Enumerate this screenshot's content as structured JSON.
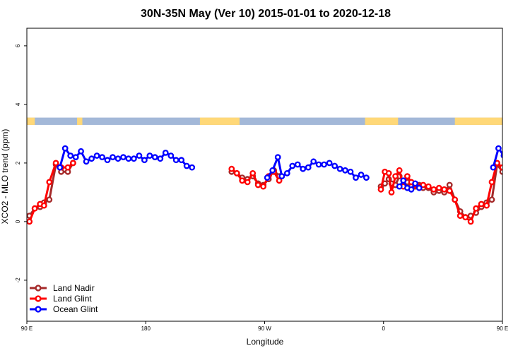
{
  "chart_data": {
    "type": "line",
    "title": "30N-35N May (Ver 10)   2015-01-01 to 2020-12-18",
    "xlabel": "Longitude",
    "ylabel": "XCO2 - MLO trend (ppm)",
    "xlim": [
      90,
      450
    ],
    "ylim": [
      -3.4,
      6.6
    ],
    "x_ticks": [
      {
        "value": 90,
        "label": "90 E"
      },
      {
        "value": 180,
        "label": "180"
      },
      {
        "value": 270,
        "label": "90 W"
      },
      {
        "value": 360,
        "label": "0"
      },
      {
        "value": 450,
        "label": "90 E"
      },
      {
        "value": 540,
        "label": "180"
      }
    ],
    "y_ticks": [
      {
        "value": -2,
        "label": "-2"
      },
      {
        "value": 0,
        "label": "0"
      },
      {
        "value": 2,
        "label": "2"
      },
      {
        "value": 4,
        "label": "4"
      },
      {
        "value": 6,
        "label": "6"
      }
    ],
    "land_ocean_band": {
      "y_range": [
        3.3,
        3.55
      ],
      "ocean_color": "#a3b8d8",
      "land_color": "#ffd878",
      "land_segments": [
        [
          90,
          96
        ],
        [
          128,
          132
        ],
        [
          221,
          251
        ],
        [
          346,
          371
        ],
        [
          414,
          494
        ]
      ]
    },
    "legend": {
      "position": "bottom-left",
      "entries": [
        {
          "label": "Land Nadir",
          "color": "#a52a2a"
        },
        {
          "label": "Land Glint",
          "color": "#ff0000"
        },
        {
          "label": "Ocean Glint",
          "color": "#0000ff"
        }
      ]
    },
    "series": [
      {
        "name": "Land Nadir",
        "color": "#a52a2a",
        "segments": [
          [
            [
              92,
              0.2
            ],
            [
              96,
              0.45
            ],
            [
              100,
              0.5
            ],
            [
              103,
              0.65
            ],
            [
              107,
              0.75
            ],
            [
              112,
              1.95
            ],
            [
              116,
              1.7
            ],
            [
              121,
              1.7
            ],
            [
              125,
              2.0
            ]
          ],
          [
            [
              245,
              1.7
            ],
            [
              249,
              1.65
            ],
            [
              253,
              1.5
            ],
            [
              257,
              1.45
            ],
            [
              261,
              1.55
            ],
            [
              265,
              1.3
            ],
            [
              269,
              1.25
            ],
            [
              273,
              1.45
            ],
            [
              277,
              1.75
            ],
            [
              281,
              1.55
            ]
          ],
          [
            [
              358,
              1.2
            ],
            [
              361,
              1.3
            ],
            [
              364,
              1.45
            ],
            [
              366,
              1.3
            ],
            [
              369,
              1.25
            ],
            [
              372,
              1.55
            ],
            [
              375,
              1.4
            ],
            [
              378,
              1.35
            ],
            [
              381,
              1.2
            ],
            [
              384,
              1.2
            ],
            [
              387,
              1.25
            ],
            [
              390,
              1.15
            ],
            [
              394,
              1.15
            ],
            [
              398,
              1.0
            ],
            [
              402,
              1.05
            ],
            [
              406,
              1.0
            ],
            [
              410,
              1.25
            ],
            [
              414,
              0.75
            ],
            [
              418,
              0.35
            ],
            [
              422,
              0.15
            ],
            [
              426,
              0.2
            ],
            [
              430,
              0.3
            ],
            [
              434,
              0.5
            ],
            [
              438,
              0.65
            ],
            [
              442,
              0.75
            ],
            [
              446,
              1.95
            ],
            [
              450,
              1.7
            ]
          ]
        ]
      },
      {
        "name": "Land Glint",
        "color": "#ff0000",
        "segments": [
          [
            [
              92,
              0.0
            ],
            [
              96,
              0.45
            ],
            [
              100,
              0.6
            ],
            [
              103,
              0.55
            ],
            [
              107,
              1.35
            ],
            [
              112,
              2.0
            ],
            [
              116,
              1.85
            ],
            [
              121,
              1.85
            ],
            [
              125,
              2.0
            ]
          ],
          [
            [
              245,
              1.8
            ],
            [
              249,
              1.65
            ],
            [
              253,
              1.4
            ],
            [
              257,
              1.35
            ],
            [
              261,
              1.65
            ],
            [
              265,
              1.25
            ],
            [
              269,
              1.2
            ],
            [
              273,
              1.55
            ],
            [
              277,
              1.7
            ],
            [
              281,
              1.4
            ]
          ],
          [
            [
              358,
              1.1
            ],
            [
              361,
              1.7
            ],
            [
              364,
              1.65
            ],
            [
              366,
              1.0
            ],
            [
              369,
              1.55
            ],
            [
              372,
              1.75
            ],
            [
              375,
              1.2
            ],
            [
              378,
              1.55
            ],
            [
              381,
              1.35
            ],
            [
              384,
              1.25
            ],
            [
              387,
              1.2
            ],
            [
              390,
              1.25
            ],
            [
              394,
              1.2
            ],
            [
              398,
              1.1
            ],
            [
              402,
              1.15
            ],
            [
              406,
              1.1
            ],
            [
              410,
              1.05
            ],
            [
              414,
              0.75
            ],
            [
              418,
              0.2
            ],
            [
              422,
              0.15
            ],
            [
              426,
              0.0
            ],
            [
              430,
              0.45
            ],
            [
              434,
              0.6
            ],
            [
              438,
              0.55
            ],
            [
              442,
              1.35
            ],
            [
              446,
              2.0
            ],
            [
              450,
              1.85
            ],
            [
              454,
              1.85
            ],
            [
              458,
              2.0
            ]
          ]
        ]
      },
      {
        "name": "Ocean Glint",
        "color": "#0000ff",
        "segments": [
          [
            [
              115,
              1.85
            ],
            [
              119,
              2.5
            ],
            [
              123,
              2.25
            ],
            [
              127,
              2.2
            ],
            [
              131,
              2.4
            ],
            [
              135,
              2.05
            ],
            [
              139,
              2.15
            ],
            [
              143,
              2.25
            ],
            [
              147,
              2.2
            ],
            [
              151,
              2.1
            ],
            [
              155,
              2.2
            ],
            [
              159,
              2.15
            ],
            [
              163,
              2.2
            ],
            [
              167,
              2.15
            ],
            [
              171,
              2.15
            ],
            [
              175,
              2.25
            ],
            [
              179,
              2.1
            ],
            [
              183,
              2.25
            ],
            [
              187,
              2.2
            ],
            [
              191,
              2.15
            ],
            [
              195,
              2.35
            ],
            [
              199,
              2.25
            ],
            [
              203,
              2.1
            ],
            [
              207,
              2.1
            ],
            [
              211,
              1.9
            ],
            [
              215,
              1.85
            ]
          ],
          [
            [
              272,
              1.5
            ],
            [
              276,
              1.75
            ],
            [
              280,
              2.2
            ],
            [
              283,
              1.55
            ],
            [
              287,
              1.65
            ],
            [
              291,
              1.9
            ],
            [
              295,
              1.95
            ],
            [
              299,
              1.8
            ],
            [
              303,
              1.85
            ],
            [
              307,
              2.05
            ],
            [
              311,
              1.95
            ],
            [
              315,
              1.95
            ],
            [
              319,
              2.0
            ],
            [
              323,
              1.9
            ],
            [
              327,
              1.8
            ],
            [
              331,
              1.75
            ],
            [
              335,
              1.7
            ],
            [
              339,
              1.5
            ],
            [
              343,
              1.6
            ],
            [
              347,
              1.5
            ]
          ],
          [
            [
              372,
              1.2
            ],
            [
              375,
              1.4
            ],
            [
              378,
              1.15
            ],
            [
              381,
              1.1
            ],
            [
              384,
              1.3
            ],
            [
              387,
              1.15
            ]
          ],
          [
            [
              443,
              1.85
            ],
            [
              447,
              2.5
            ],
            [
              451,
              2.25
            ],
            [
              455,
              2.2
            ],
            [
              459,
              2.4
            ],
            [
              463,
              2.05
            ],
            [
              467,
              2.15
            ],
            [
              471,
              2.25
            ],
            [
              475,
              2.2
            ],
            [
              479,
              2.1
            ],
            [
              483,
              2.2
            ],
            [
              487,
              2.15
            ]
          ]
        ]
      }
    ]
  }
}
